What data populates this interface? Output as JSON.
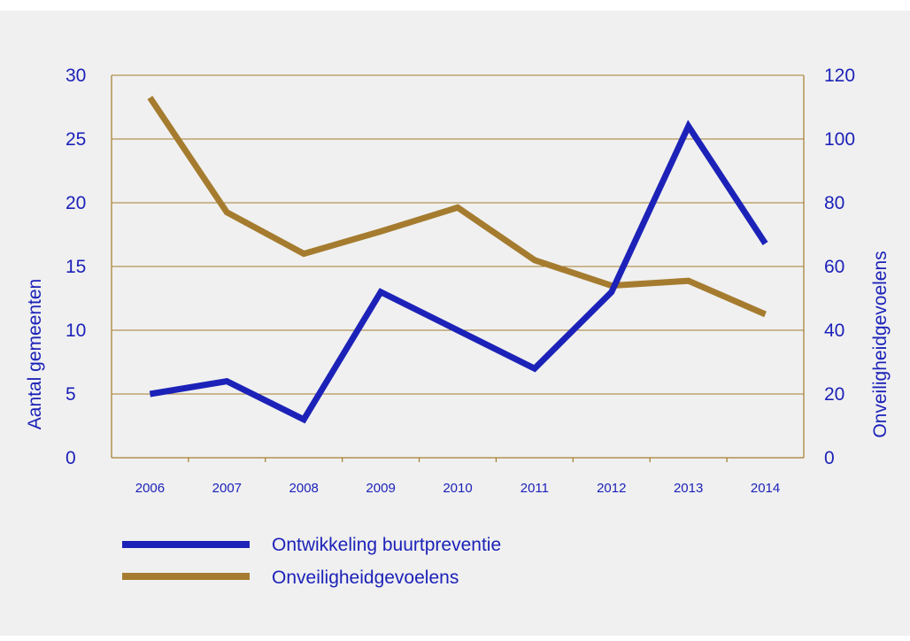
{
  "chart_data": {
    "type": "line",
    "categories": [
      "2006",
      "2007",
      "2008",
      "2009",
      "2010",
      "2011",
      "2012",
      "2013",
      "2014"
    ],
    "series": [
      {
        "name": "Ontwikkeling buurtpreventie",
        "axis": "left",
        "color": "#1c22b8",
        "values": [
          5,
          6,
          3,
          13,
          10,
          7,
          13,
          26,
          16.8
        ]
      },
      {
        "name": "Onveiligheidgevoelens",
        "axis": "right",
        "color": "#a57c2f",
        "values": [
          113,
          77,
          64,
          71,
          78.5,
          62,
          54,
          55.5,
          45
        ]
      }
    ],
    "ylabel": "Aantal gemeenten",
    "y2label": "Onveiligheidgevoelens",
    "ylim": [
      0,
      30
    ],
    "y2lim": [
      0,
      120
    ],
    "yticks": [
      "0",
      "5",
      "10",
      "15",
      "20",
      "25",
      "30"
    ],
    "y2ticks": [
      "0",
      "20",
      "40",
      "60",
      "80",
      "100",
      "120"
    ],
    "grid": true,
    "legend_position": "bottom-left",
    "axis_color": "#a57c2f",
    "text_color": "#1c22b8"
  }
}
